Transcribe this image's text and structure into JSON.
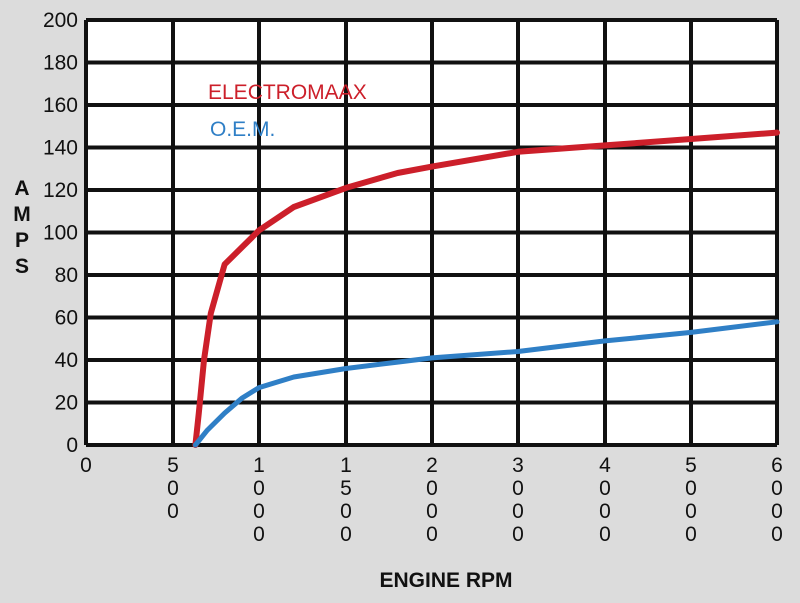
{
  "chart_data": {
    "type": "line",
    "xlabel": "ENGINE RPM",
    "ylabel": "AMPS",
    "x_tick_labels": [
      "0",
      "500",
      "1000",
      "1500",
      "2000",
      "3000",
      "4000",
      "5000",
      "6000"
    ],
    "y_ticks": [
      0,
      20,
      40,
      60,
      80,
      100,
      120,
      140,
      160,
      180,
      200
    ],
    "ylim": [
      0,
      200
    ],
    "grid": true,
    "legend_position": "top-left",
    "series": [
      {
        "name": "ELECTROMAAX",
        "color": "#cc1f2a",
        "x": [
          630,
          650,
          680,
          720,
          800,
          1000,
          1200,
          1500,
          1800,
          2000,
          3000,
          4000,
          5000,
          6000
        ],
        "y": [
          0,
          15,
          40,
          62,
          85,
          101,
          112,
          121,
          128,
          131,
          138,
          141,
          144,
          147
        ]
      },
      {
        "name": "O.E.M.",
        "color": "#2f7fc6",
        "x": [
          630,
          700,
          800,
          900,
          1000,
          1200,
          1500,
          1800,
          2000,
          3000,
          4000,
          5000,
          6000
        ],
        "y": [
          0,
          7,
          15,
          22,
          27,
          32,
          36,
          39,
          41,
          44,
          49,
          53,
          58
        ]
      }
    ]
  }
}
